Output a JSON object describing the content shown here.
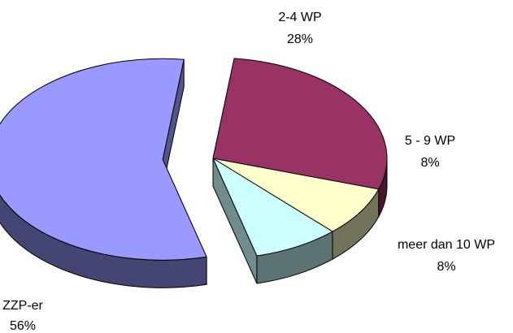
{
  "chart_data": {
    "type": "pie",
    "title": "",
    "three_d": true,
    "exploded_slice": "ZZP-er",
    "legend": "none",
    "slices": [
      {
        "label": "2-4 WP",
        "value": 28,
        "value_label": "28%",
        "color": "#993366"
      },
      {
        "label": "5 - 9 WP",
        "value": 8,
        "value_label": "8%",
        "color": "#FFFFCC"
      },
      {
        "label": "meer dan 10 WP",
        "value": 8,
        "value_label": "8%",
        "color": "#CCFFFF"
      },
      {
        "label": "ZZP-er",
        "value": 56,
        "value_label": "56%",
        "color": "#9999FF"
      }
    ]
  }
}
